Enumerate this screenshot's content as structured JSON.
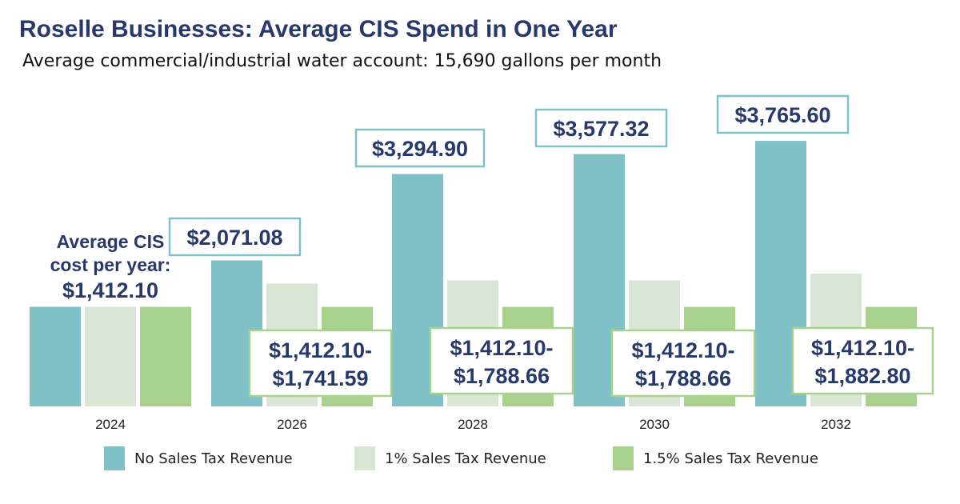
{
  "chart_data": {
    "type": "bar",
    "title": "Roselle Businesses: Average CIS Spend in One Year",
    "subtitle": "Average commercial/industrial water account: 15,690 gallons per month",
    "categories": [
      "2024",
      "2026",
      "2028",
      "2030",
      "2032"
    ],
    "series": [
      {
        "name": "No Sales Tax Revenue",
        "color": "#7fc1c6",
        "values": [
          1412.1,
          2071.08,
          3294.9,
          3577.32,
          3765.6
        ]
      },
      {
        "name": "1% Sales Tax Revenue",
        "color": "#dae6d5",
        "values": [
          1412.1,
          1741.59,
          1788.66,
          1788.66,
          1882.8
        ]
      },
      {
        "name": "1.5% Sales Tax Revenue",
        "color": "#a9d18e",
        "values": [
          1412.1,
          1412.1,
          1412.1,
          1412.1,
          1412.1
        ]
      }
    ],
    "ylim": [
      0,
      4000
    ],
    "grid": false,
    "legend": "bottom",
    "annotations": {
      "base_lines": [
        "Average CIS",
        "cost per year:",
        "$1,412.10"
      ],
      "high_labels": [
        "$2,071.08",
        "$3,294.90",
        "$3,577.32",
        "$3,765.60"
      ],
      "range_labels": [
        [
          "$1,412.10-",
          "$1,741.59"
        ],
        [
          "$1,412.10-",
          "$1,788.66"
        ],
        [
          "$1,412.10-",
          "$1,788.66"
        ],
        [
          "$1,412.10-",
          "$1,882.80"
        ]
      ]
    },
    "colors": {
      "title": "#27386b",
      "label_text": "#27386b",
      "teal_border": "#7fc1c6",
      "green_border": "#a9d18e"
    }
  }
}
